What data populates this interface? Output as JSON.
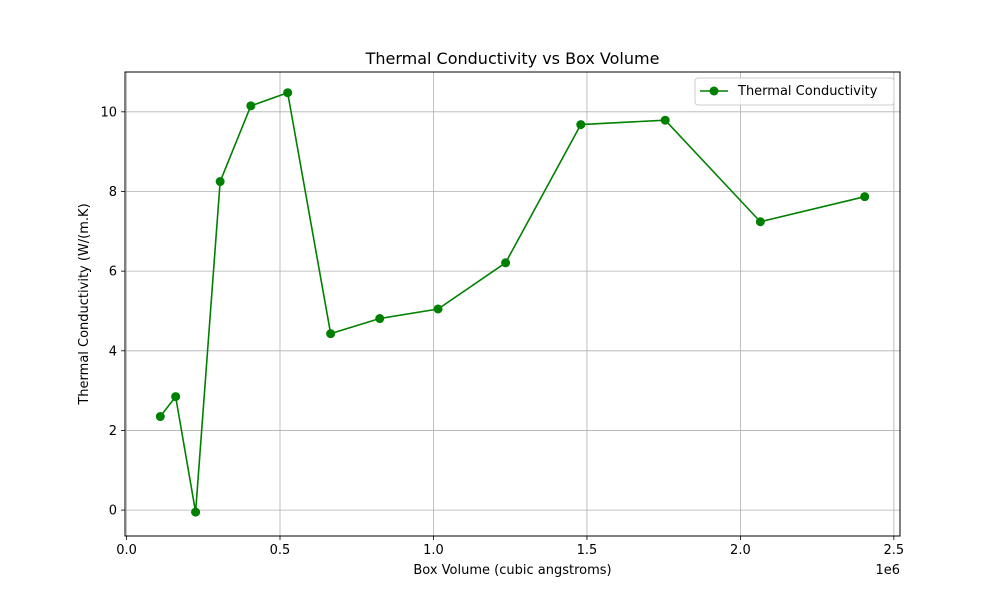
{
  "chart_data": {
    "type": "line",
    "title": "Thermal Conductivity vs Box Volume",
    "xlabel": "Box Volume (cubic angstroms)",
    "ylabel": "Thermal Conductivity (W/(m.K)",
    "x_offset_label": "1e6",
    "xlim": [
      -5000,
      2520000
    ],
    "ylim": [
      -0.65,
      11.0
    ],
    "x_ticks": [
      0,
      500000,
      1000000,
      1500000,
      2000000,
      2500000
    ],
    "x_tick_labels": [
      "0.0",
      "0.5",
      "1.0",
      "1.5",
      "2.0",
      "2.5"
    ],
    "y_ticks": [
      0,
      2,
      4,
      6,
      8,
      10
    ],
    "y_tick_labels": [
      "0",
      "2",
      "4",
      "6",
      "8",
      "10"
    ],
    "grid": true,
    "legend_position": "top-right",
    "series": [
      {
        "name": "Thermal Conductivity",
        "color": "#008000",
        "marker": "circle",
        "x": [
          110000,
          160000,
          225000,
          305000,
          405000,
          525000,
          665000,
          825000,
          1015000,
          1235000,
          1480000,
          1755000,
          2065000,
          2405000
        ],
        "y": [
          2.35,
          2.85,
          -0.05,
          8.25,
          10.15,
          10.48,
          4.43,
          4.81,
          5.05,
          6.21,
          9.68,
          9.79,
          7.24,
          7.87
        ]
      }
    ]
  }
}
